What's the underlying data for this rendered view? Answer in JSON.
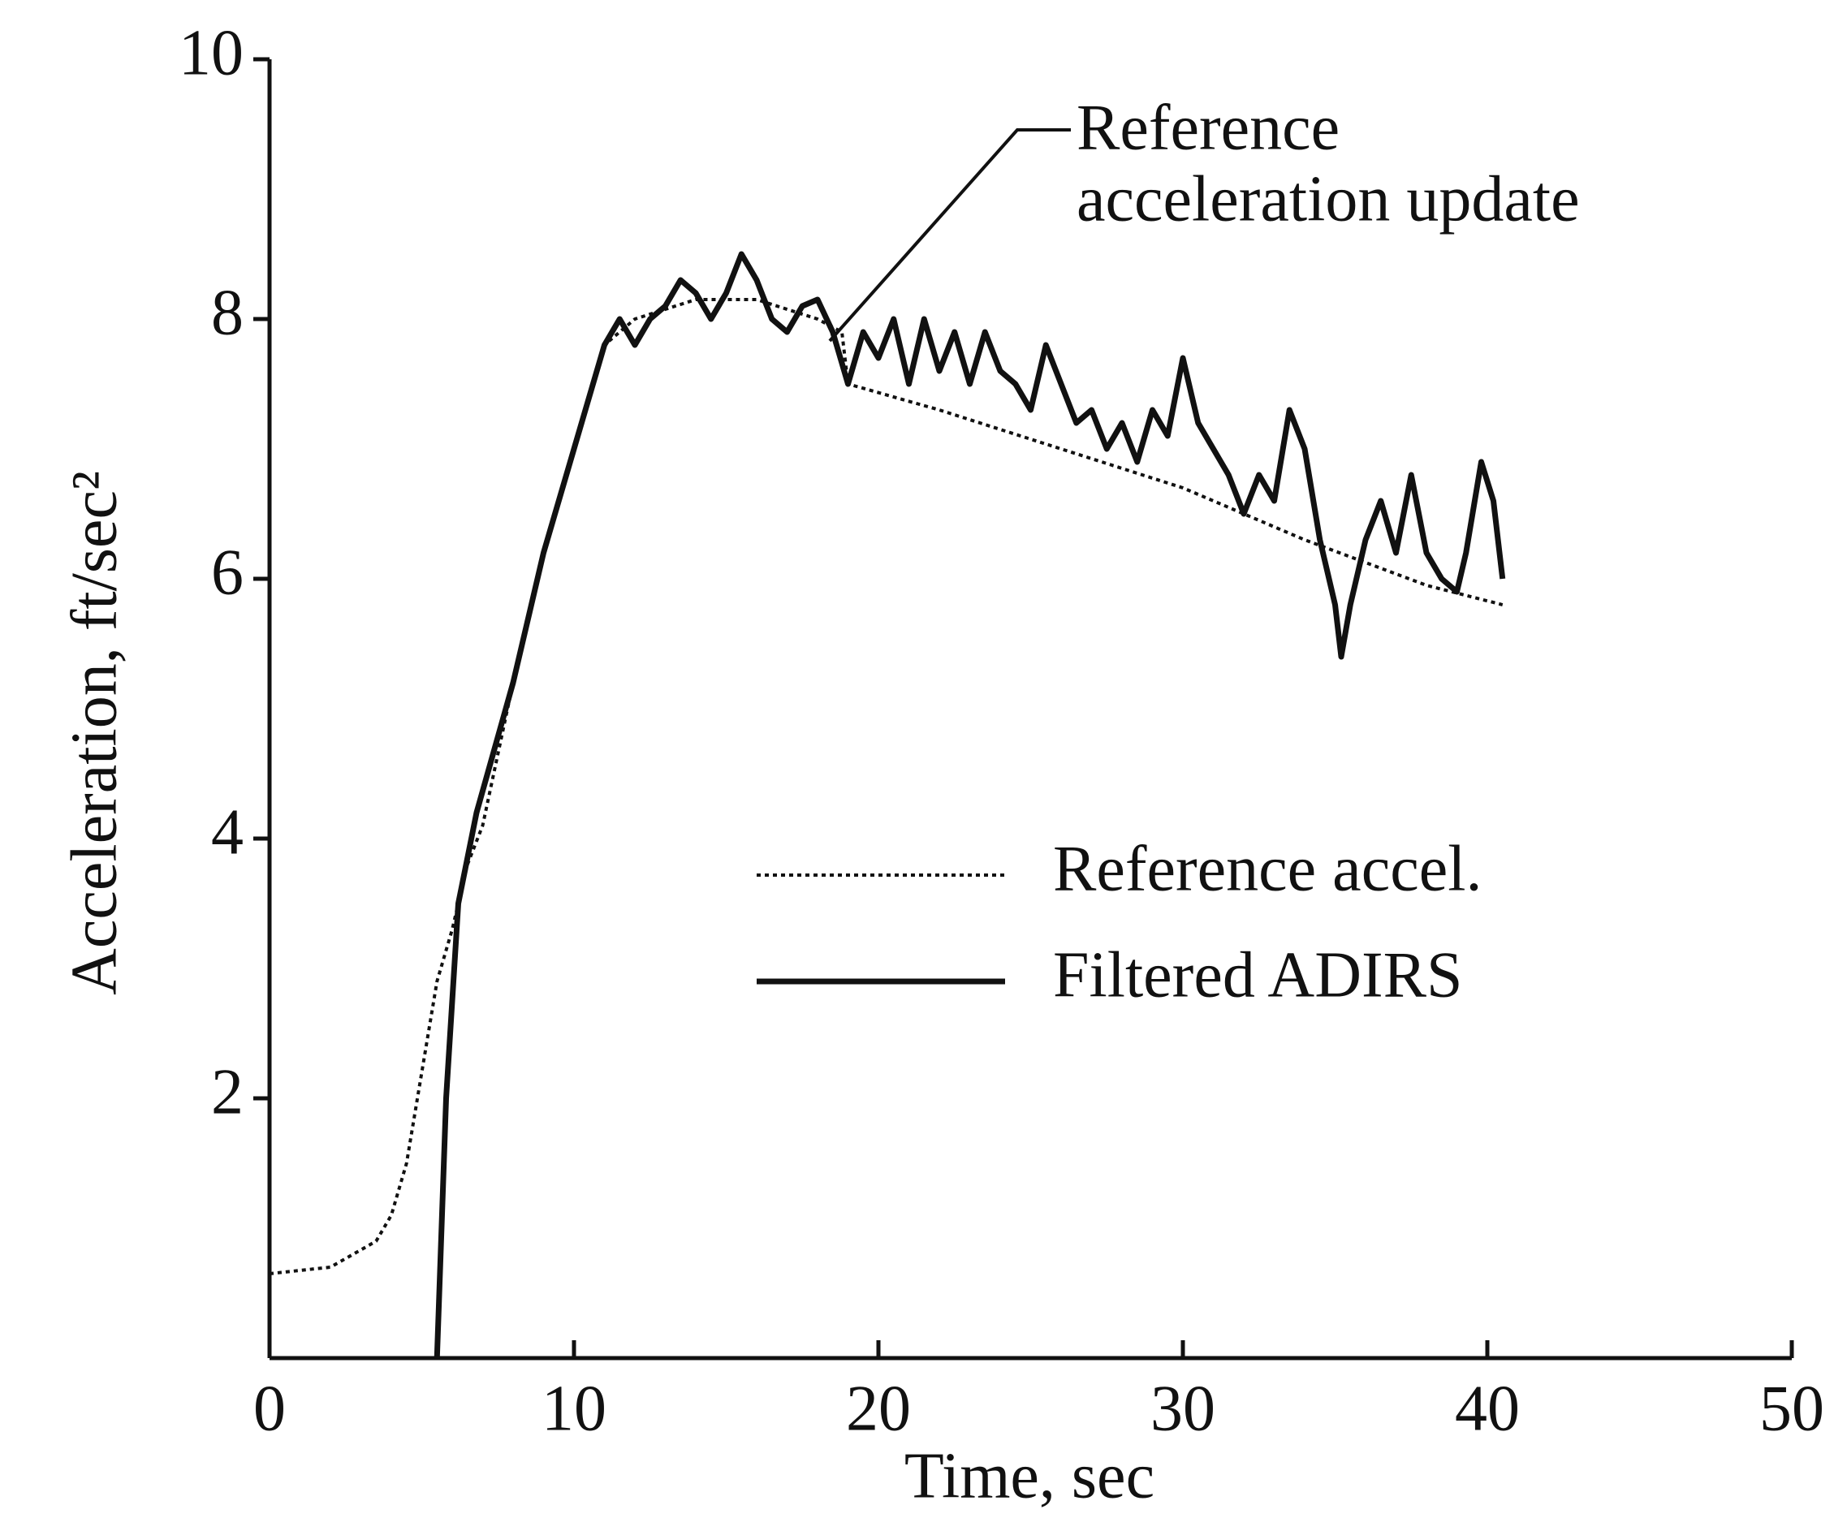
{
  "chart_data": {
    "type": "line",
    "x_label": "Time, sec",
    "y_label": "Acceleration, ft/sec²",
    "annotation": [
      "Reference",
      "acceleration update"
    ],
    "xlim": [
      0,
      50
    ],
    "xticks": [
      0,
      10,
      20,
      30,
      40,
      50
    ],
    "ylim": [
      0,
      10
    ],
    "yticks": [
      2,
      4,
      6,
      8,
      10
    ],
    "grid": false,
    "legend": "right",
    "series": [
      {
        "name": "Reference accel.",
        "color": "#111111",
        "style": "dotted",
        "x": [
          0,
          2,
          3.5,
          4,
          4.5,
          5,
          5.5,
          6,
          6.5,
          7,
          8,
          9,
          10,
          11,
          12,
          14,
          16,
          18,
          18.8,
          19,
          22,
          26,
          30,
          34,
          38,
          40.5
        ],
        "values": [
          0.65,
          0.7,
          0.9,
          1.1,
          1.5,
          2.2,
          2.9,
          3.3,
          3.8,
          4.1,
          5.2,
          6.2,
          7.0,
          7.8,
          8.0,
          8.15,
          8.15,
          8.0,
          7.9,
          7.5,
          7.3,
          7.0,
          6.7,
          6.3,
          5.95,
          5.8
        ]
      },
      {
        "name": "Filtered ADIRS",
        "color": "#111111",
        "style": "solid",
        "x": [
          5.5,
          5.8,
          6.2,
          6.8,
          8,
          9,
          10,
          11,
          11.5,
          12,
          12.5,
          13,
          13.5,
          14,
          14.5,
          15,
          15.5,
          16,
          16.5,
          17,
          17.5,
          18,
          18.5,
          19,
          19.5,
          20,
          20.5,
          21,
          21.5,
          22,
          22.5,
          23,
          23.5,
          24,
          24.5,
          25,
          25.5,
          26,
          26.5,
          27,
          27.5,
          28,
          28.5,
          29,
          29.5,
          30,
          30.5,
          31,
          31.5,
          32,
          32.5,
          33,
          33.5,
          34,
          34.5,
          35,
          35.2,
          35.5,
          36,
          36.5,
          37,
          37.5,
          38,
          38.5,
          39,
          39.3,
          39.8,
          40.2,
          40.5
        ],
        "values": [
          0,
          2,
          3.5,
          4.2,
          5.2,
          6.2,
          7.0,
          7.8,
          8.0,
          7.8,
          8.0,
          8.1,
          8.3,
          8.2,
          8.0,
          8.2,
          8.5,
          8.3,
          8.0,
          7.9,
          8.1,
          8.15,
          7.9,
          7.5,
          7.9,
          7.7,
          8.0,
          7.5,
          8.0,
          7.6,
          7.9,
          7.5,
          7.9,
          7.6,
          7.5,
          7.3,
          7.8,
          7.5,
          7.2,
          7.3,
          7.0,
          7.2,
          6.9,
          7.3,
          7.1,
          7.7,
          7.2,
          7.0,
          6.8,
          6.5,
          6.8,
          6.6,
          7.3,
          7.0,
          6.3,
          5.8,
          5.4,
          5.8,
          6.3,
          6.6,
          6.2,
          6.8,
          6.2,
          6.0,
          5.9,
          6.2,
          6.9,
          6.6,
          6.0
        ]
      }
    ]
  }
}
